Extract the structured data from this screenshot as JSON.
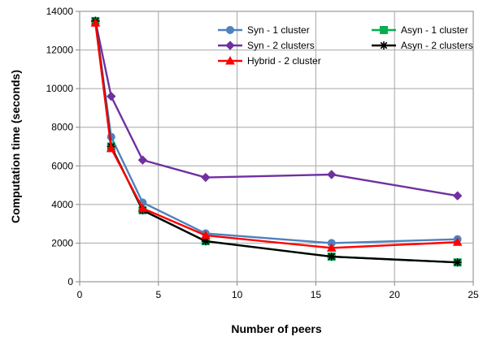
{
  "chart_data": {
    "type": "line",
    "title": "",
    "xlabel": "Number of peers",
    "ylabel": "Computation time (seconds)",
    "xlim": [
      0,
      25
    ],
    "ylim": [
      0,
      14000
    ],
    "xticks": [
      0,
      5,
      10,
      15,
      20,
      25
    ],
    "yticks": [
      0,
      2000,
      4000,
      6000,
      8000,
      10000,
      12000,
      14000
    ],
    "grid": true,
    "legend_position": "top-right",
    "series": [
      {
        "name": "Syn - 1 cluster",
        "color": "#4F81BD",
        "marker": "circle",
        "points": [
          [
            1,
            13500
          ],
          [
            2,
            7500
          ],
          [
            4,
            4100
          ],
          [
            8,
            2500
          ],
          [
            16,
            2000
          ],
          [
            24,
            2200
          ]
        ]
      },
      {
        "name": "Asyn - 1 cluster",
        "color": "#00B050",
        "marker": "square",
        "points": [
          [
            1,
            13500
          ],
          [
            2,
            7000
          ],
          [
            4,
            3700
          ],
          [
            8,
            2100
          ],
          [
            16,
            1300
          ],
          [
            24,
            1000
          ]
        ]
      },
      {
        "name": "Syn - 2 clusters",
        "color": "#7030A0",
        "marker": "diamond",
        "points": [
          [
            1,
            13500
          ],
          [
            2,
            9600
          ],
          [
            4,
            6300
          ],
          [
            8,
            5400
          ],
          [
            16,
            5550
          ],
          [
            24,
            4450
          ]
        ]
      },
      {
        "name": "Asyn - 2 clusters",
        "color": "#000000",
        "marker": "star",
        "points": [
          [
            1,
            13500
          ],
          [
            2,
            7000
          ],
          [
            4,
            3700
          ],
          [
            8,
            2100
          ],
          [
            16,
            1300
          ],
          [
            24,
            1000
          ]
        ]
      },
      {
        "name": "Hybrid - 2 cluster",
        "color": "#FF0000",
        "marker": "triangle",
        "points": [
          [
            1,
            13400
          ],
          [
            2,
            6900
          ],
          [
            4,
            3800
          ],
          [
            8,
            2400
          ],
          [
            16,
            1750
          ],
          [
            24,
            2050
          ]
        ]
      }
    ]
  }
}
